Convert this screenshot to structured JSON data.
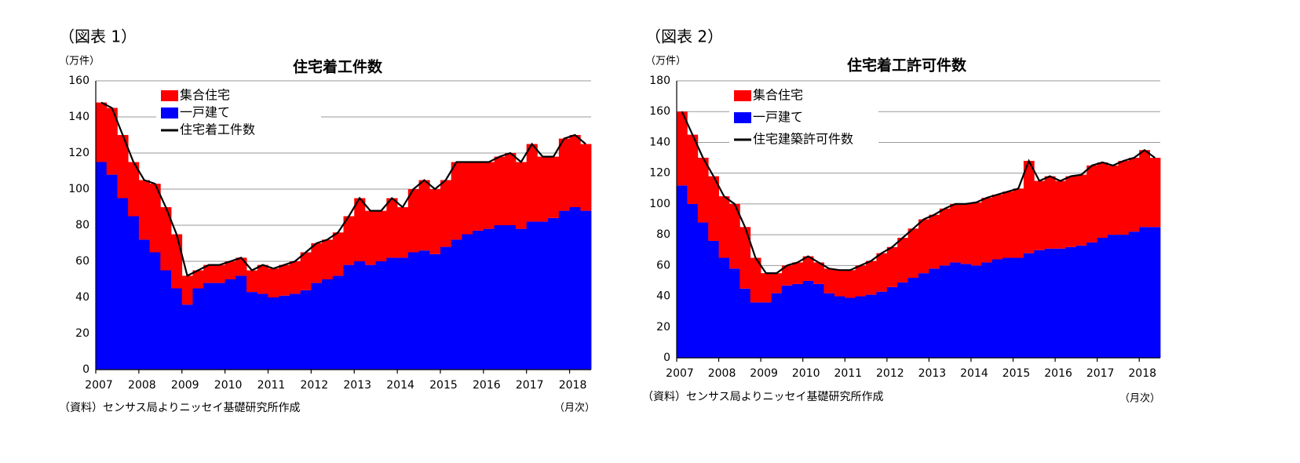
{
  "chart_data": [
    {
      "type": "bar",
      "label": "（図表 1）",
      "title": "住宅着工件数",
      "y_unit": "（万件）",
      "x_unit": "（月次）",
      "source": "（資料）センサス局よりニッセイ基礎研究所作成",
      "stacked": true,
      "categories": [
        "2007",
        null,
        null,
        null,
        "2008",
        null,
        null,
        null,
        "2009",
        null,
        null,
        null,
        "2010",
        null,
        null,
        null,
        "2011",
        null,
        null,
        null,
        "2012",
        null,
        null,
        null,
        "2013",
        null,
        null,
        null,
        "2014",
        null,
        null,
        null,
        "2015",
        null,
        null,
        null,
        "2016",
        null,
        null,
        null,
        "2017",
        null,
        null,
        null,
        "2018",
        null
      ],
      "series": [
        {
          "name": "集合住宅",
          "color": "#ff0000",
          "values": [
            33,
            37,
            35,
            30,
            33,
            38,
            35,
            30,
            16,
            10,
            10,
            10,
            10,
            10,
            12,
            16,
            16,
            17,
            18,
            21,
            22,
            22,
            24,
            27,
            35,
            30,
            28,
            33,
            28,
            35,
            39,
            36,
            37,
            43,
            40,
            38,
            37,
            38,
            40,
            37,
            43,
            36,
            34,
            40,
            40,
            37
          ]
        },
        {
          "name": "一戸建て",
          "color": "#0000ff",
          "values": [
            115,
            108,
            95,
            85,
            72,
            65,
            55,
            45,
            36,
            45,
            48,
            48,
            50,
            52,
            43,
            42,
            40,
            41,
            42,
            44,
            48,
            50,
            52,
            58,
            60,
            58,
            60,
            62,
            62,
            65,
            66,
            64,
            68,
            72,
            75,
            77,
            78,
            80,
            80,
            78,
            82,
            82,
            84,
            88,
            90,
            88
          ]
        },
        {
          "name": "住宅着工件数",
          "color": "#000000",
          "type": "line",
          "values": [
            148,
            145,
            130,
            115,
            105,
            103,
            90,
            75,
            52,
            55,
            58,
            58,
            60,
            62,
            55,
            58,
            56,
            58,
            60,
            65,
            70,
            72,
            76,
            85,
            95,
            88,
            88,
            95,
            90,
            100,
            105,
            100,
            105,
            115,
            115,
            115,
            115,
            118,
            120,
            115,
            125,
            118,
            118,
            128,
            130,
            125
          ]
        }
      ],
      "ylim": [
        0,
        160
      ],
      "yticks": [
        0,
        20,
        40,
        60,
        80,
        100,
        120,
        140,
        160
      ],
      "grid": true
    },
    {
      "type": "bar",
      "label": "（図表 2）",
      "title": "住宅着工許可件数",
      "y_unit": "（万件）",
      "x_unit": "（月次）",
      "source": "（資料）センサス局よりニッセイ基礎研究所作成",
      "stacked": true,
      "categories": [
        "2007",
        null,
        null,
        null,
        "2008",
        null,
        null,
        null,
        "2009",
        null,
        null,
        null,
        "2010",
        null,
        null,
        null,
        "2011",
        null,
        null,
        null,
        "2012",
        null,
        null,
        null,
        "2013",
        null,
        null,
        null,
        "2014",
        null,
        null,
        null,
        "2015",
        null,
        null,
        null,
        "2016",
        null,
        null,
        null,
        "2017",
        null,
        null,
        null,
        "2018",
        null
      ],
      "series": [
        {
          "name": "集合住宅",
          "color": "#ff0000",
          "values": [
            48,
            45,
            42,
            42,
            40,
            42,
            40,
            29,
            19,
            13,
            13,
            14,
            16,
            14,
            16,
            17,
            18,
            20,
            22,
            25,
            26,
            29,
            32,
            35,
            35,
            37,
            38,
            39,
            41,
            42,
            42,
            43,
            45,
            60,
            45,
            47,
            44,
            46,
            46,
            50,
            49,
            45,
            48,
            48,
            50,
            45
          ]
        },
        {
          "name": "一戸建て",
          "color": "#0000ff",
          "values": [
            112,
            100,
            88,
            76,
            65,
            58,
            45,
            36,
            36,
            42,
            47,
            48,
            50,
            48,
            42,
            40,
            39,
            40,
            41,
            43,
            46,
            49,
            52,
            55,
            58,
            60,
            62,
            61,
            60,
            62,
            64,
            65,
            65,
            68,
            70,
            71,
            71,
            72,
            73,
            75,
            78,
            80,
            80,
            82,
            85,
            85
          ]
        },
        {
          "name": "住宅建築許可件数",
          "color": "#000000",
          "type": "line",
          "values": [
            160,
            145,
            130,
            118,
            105,
            100,
            85,
            65,
            55,
            55,
            60,
            62,
            66,
            62,
            58,
            57,
            57,
            60,
            63,
            68,
            72,
            78,
            84,
            90,
            93,
            97,
            100,
            100,
            101,
            104,
            106,
            108,
            110,
            128,
            115,
            118,
            115,
            118,
            119,
            125,
            127,
            125,
            128,
            130,
            135,
            130
          ]
        }
      ],
      "ylim": [
        0,
        180
      ],
      "yticks": [
        0,
        20,
        40,
        60,
        80,
        100,
        120,
        140,
        160,
        180
      ],
      "grid": true
    }
  ]
}
